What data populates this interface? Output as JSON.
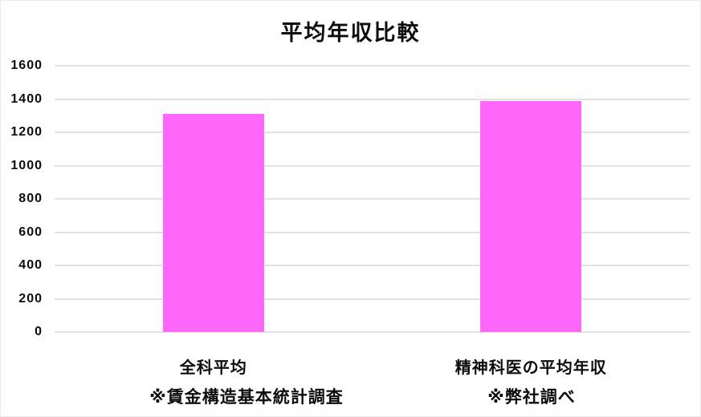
{
  "chart_data": {
    "type": "bar",
    "title": "平均年収比較",
    "categories": [
      "全科平均",
      "精神科医の平均年収"
    ],
    "values": [
      1310,
      1390
    ],
    "footnotes": [
      "※賃金構造基本統計調査",
      "※弊社調べ"
    ],
    "xlabel": "",
    "ylabel": "",
    "ylim": [
      0,
      1600
    ],
    "yticks": [
      0,
      200,
      400,
      600,
      800,
      1000,
      1200,
      1400,
      1600
    ],
    "grid": "horizontal",
    "legend": "none",
    "bar_color": "#ff66fa",
    "gridline_color": "#e2e2e2",
    "title_color": "#0d0d0d",
    "text_color": "#0d0d0d",
    "background_color": "#ffffff"
  }
}
